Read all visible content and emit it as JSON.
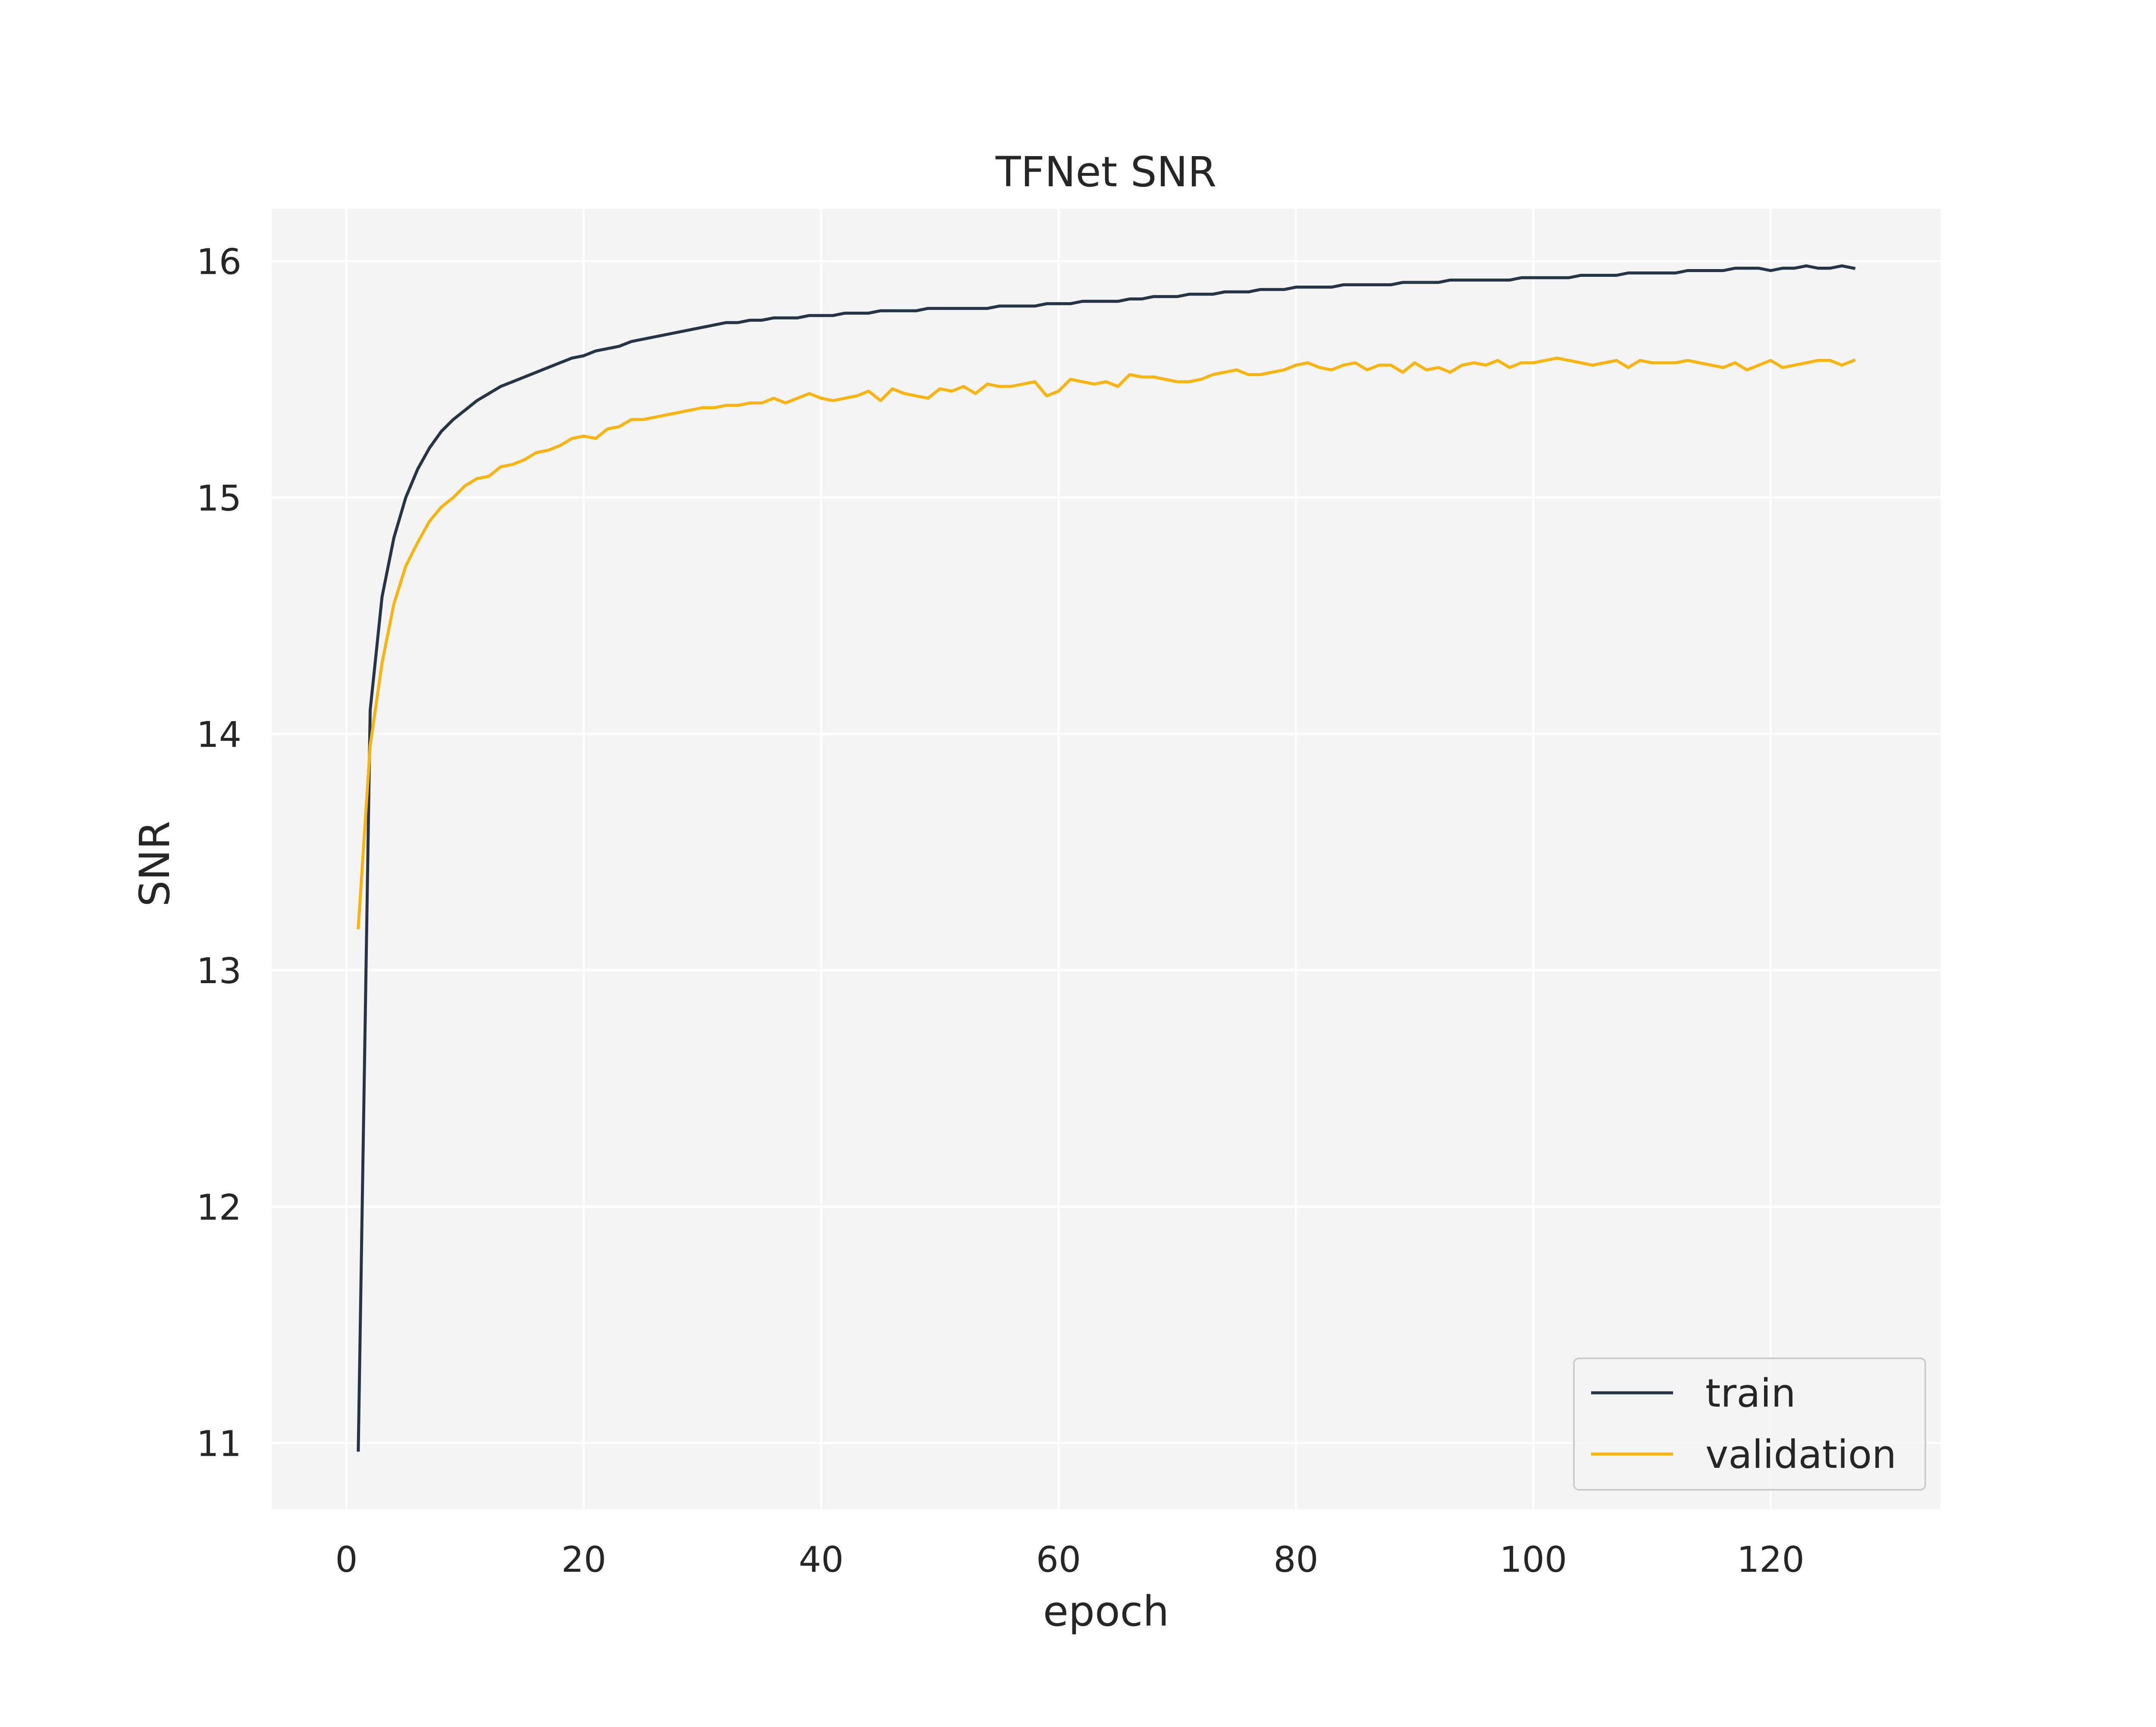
{
  "chart_data": {
    "type": "line",
    "title": "TFNet SNR",
    "xlabel": "epoch",
    "ylabel": "SNR",
    "xlim": [
      -6.3,
      134.3
    ],
    "ylim": [
      10.72,
      16.22
    ],
    "xticks": [
      0,
      20,
      40,
      60,
      80,
      100,
      120
    ],
    "yticks": [
      11,
      12,
      13,
      14,
      15,
      16
    ],
    "grid": true,
    "legend_position": "lower-right",
    "colors": {
      "background": "#f4f4f4",
      "grid": "#ffffff",
      "train": "#253447",
      "validation": "#fbb310"
    },
    "series": [
      {
        "name": "train",
        "x": [
          1,
          2,
          3,
          4,
          5,
          6,
          7,
          8,
          9,
          10,
          11,
          12,
          13,
          14,
          15,
          16,
          17,
          18,
          19,
          20,
          21,
          22,
          23,
          24,
          25,
          26,
          27,
          28,
          29,
          30,
          31,
          32,
          33,
          34,
          35,
          36,
          37,
          38,
          39,
          40,
          41,
          42,
          43,
          44,
          45,
          46,
          47,
          48,
          49,
          50,
          51,
          52,
          53,
          54,
          55,
          56,
          57,
          58,
          59,
          60,
          61,
          62,
          63,
          64,
          65,
          66,
          67,
          68,
          69,
          70,
          71,
          72,
          73,
          74,
          75,
          76,
          77,
          78,
          79,
          80,
          81,
          82,
          83,
          84,
          85,
          86,
          87,
          88,
          89,
          90,
          91,
          92,
          93,
          94,
          95,
          96,
          97,
          98,
          99,
          100,
          101,
          102,
          103,
          104,
          105,
          106,
          107,
          108,
          109,
          110,
          111,
          112,
          113,
          114,
          115,
          116,
          117,
          118,
          119,
          120,
          121,
          122,
          123,
          124,
          125,
          126,
          127
        ],
        "y": [
          10.97,
          14.1,
          14.58,
          14.83,
          15.0,
          15.12,
          15.21,
          15.28,
          15.33,
          15.37,
          15.41,
          15.44,
          15.47,
          15.49,
          15.51,
          15.53,
          15.55,
          15.57,
          15.59,
          15.6,
          15.62,
          15.63,
          15.64,
          15.66,
          15.67,
          15.68,
          15.69,
          15.7,
          15.71,
          15.72,
          15.73,
          15.74,
          15.74,
          15.75,
          15.75,
          15.76,
          15.76,
          15.76,
          15.77,
          15.77,
          15.77,
          15.78,
          15.78,
          15.78,
          15.79,
          15.79,
          15.79,
          15.79,
          15.8,
          15.8,
          15.8,
          15.8,
          15.8,
          15.8,
          15.81,
          15.81,
          15.81,
          15.81,
          15.82,
          15.82,
          15.82,
          15.83,
          15.83,
          15.83,
          15.83,
          15.84,
          15.84,
          15.85,
          15.85,
          15.85,
          15.86,
          15.86,
          15.86,
          15.87,
          15.87,
          15.87,
          15.88,
          15.88,
          15.88,
          15.89,
          15.89,
          15.89,
          15.89,
          15.9,
          15.9,
          15.9,
          15.9,
          15.9,
          15.91,
          15.91,
          15.91,
          15.91,
          15.92,
          15.92,
          15.92,
          15.92,
          15.92,
          15.92,
          15.93,
          15.93,
          15.93,
          15.93,
          15.93,
          15.94,
          15.94,
          15.94,
          15.94,
          15.95,
          15.95,
          15.95,
          15.95,
          15.95,
          15.96,
          15.96,
          15.96,
          15.96,
          15.97,
          15.97,
          15.97,
          15.96,
          15.97,
          15.97,
          15.98,
          15.97,
          15.97,
          15.98,
          15.97
        ]
      },
      {
        "name": "validation",
        "x": [
          1,
          2,
          3,
          4,
          5,
          6,
          7,
          8,
          9,
          10,
          11,
          12,
          13,
          14,
          15,
          16,
          17,
          18,
          19,
          20,
          21,
          22,
          23,
          24,
          25,
          26,
          27,
          28,
          29,
          30,
          31,
          32,
          33,
          34,
          35,
          36,
          37,
          38,
          39,
          40,
          41,
          42,
          43,
          44,
          45,
          46,
          47,
          48,
          49,
          50,
          51,
          52,
          53,
          54,
          55,
          56,
          57,
          58,
          59,
          60,
          61,
          62,
          63,
          64,
          65,
          66,
          67,
          68,
          69,
          70,
          71,
          72,
          73,
          74,
          75,
          76,
          77,
          78,
          79,
          80,
          81,
          82,
          83,
          84,
          85,
          86,
          87,
          88,
          89,
          90,
          91,
          92,
          93,
          94,
          95,
          96,
          97,
          98,
          99,
          100,
          101,
          102,
          103,
          104,
          105,
          106,
          107,
          108,
          109,
          110,
          111,
          112,
          113,
          114,
          115,
          116,
          117,
          118,
          119,
          120,
          121,
          122,
          123,
          124,
          125,
          126,
          127
        ],
        "y": [
          13.18,
          13.95,
          14.3,
          14.55,
          14.71,
          14.81,
          14.9,
          14.96,
          15.0,
          15.05,
          15.08,
          15.09,
          15.13,
          15.14,
          15.16,
          15.19,
          15.2,
          15.22,
          15.25,
          15.26,
          15.25,
          15.29,
          15.3,
          15.33,
          15.33,
          15.34,
          15.35,
          15.36,
          15.37,
          15.38,
          15.38,
          15.39,
          15.39,
          15.4,
          15.4,
          15.42,
          15.4,
          15.42,
          15.44,
          15.42,
          15.41,
          15.42,
          15.43,
          15.45,
          15.41,
          15.46,
          15.44,
          15.43,
          15.42,
          15.46,
          15.45,
          15.47,
          15.44,
          15.48,
          15.47,
          15.47,
          15.48,
          15.49,
          15.43,
          15.45,
          15.5,
          15.49,
          15.48,
          15.49,
          15.47,
          15.52,
          15.51,
          15.51,
          15.5,
          15.49,
          15.49,
          15.5,
          15.52,
          15.53,
          15.54,
          15.52,
          15.52,
          15.53,
          15.54,
          15.56,
          15.57,
          15.55,
          15.54,
          15.56,
          15.57,
          15.54,
          15.56,
          15.56,
          15.53,
          15.57,
          15.54,
          15.55,
          15.53,
          15.56,
          15.57,
          15.56,
          15.58,
          15.55,
          15.57,
          15.57,
          15.58,
          15.59,
          15.58,
          15.57,
          15.56,
          15.57,
          15.58,
          15.55,
          15.58,
          15.57,
          15.57,
          15.57,
          15.58,
          15.57,
          15.56,
          15.55,
          15.57,
          15.54,
          15.56,
          15.58,
          15.55,
          15.56,
          15.57,
          15.58,
          15.58,
          15.56,
          15.58
        ]
      }
    ]
  }
}
